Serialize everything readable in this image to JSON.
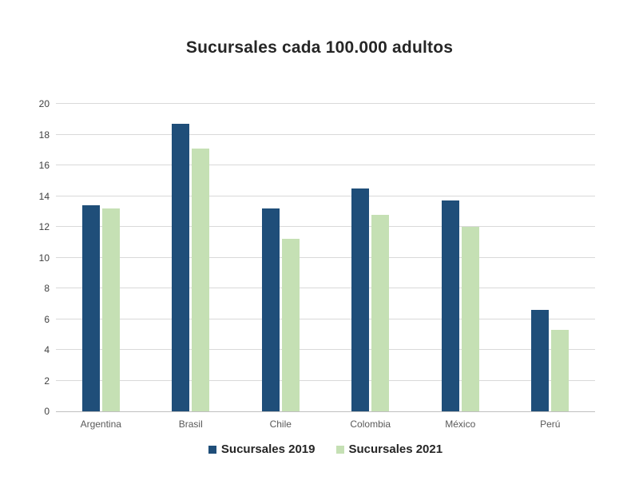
{
  "chart_data": {
    "type": "bar",
    "title": "Sucursales cada 100.000 adultos",
    "categories": [
      "Argentina",
      "Brasil",
      "Chile",
      "Colombia",
      "México",
      "Perú"
    ],
    "series": [
      {
        "name": "Sucursales 2019",
        "color": "#1F4E79",
        "values": [
          13.4,
          18.7,
          13.2,
          14.5,
          13.7,
          6.6
        ]
      },
      {
        "name": "Sucursales 2021",
        "color": "#C5E0B4",
        "values": [
          13.2,
          17.1,
          11.2,
          12.8,
          12.0,
          5.3
        ]
      }
    ],
    "ylim": [
      0,
      20
    ],
    "ytick_step": 2,
    "grid": true,
    "legend_position": "bottom",
    "colors": {
      "gridline": "#d9d9d9",
      "axis_line": "#bfbfbf",
      "title_text": "#262626",
      "tick_text": "#595959"
    }
  }
}
